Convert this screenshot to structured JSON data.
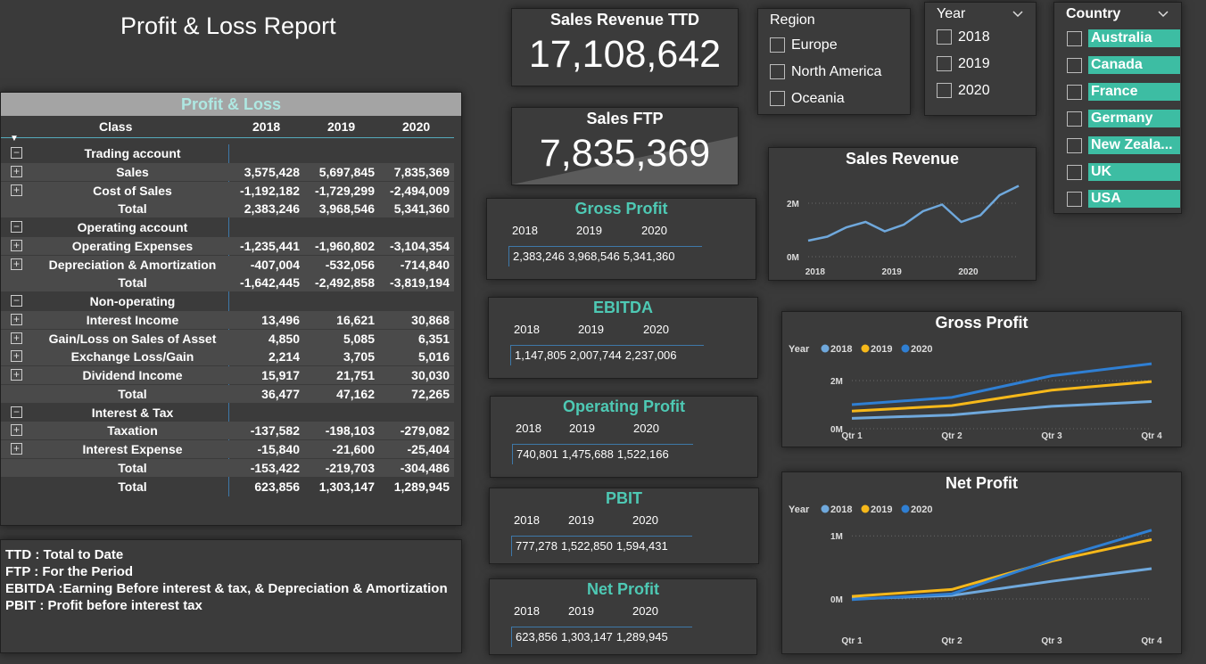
{
  "page_title": "Profit & Loss Report",
  "pl": {
    "title": "Profit & Loss",
    "headers": [
      "Class",
      "2018",
      "2019",
      "2020"
    ],
    "rows": [
      {
        "label": "Trading account",
        "exp": "−",
        "v": [
          "",
          "",
          ""
        ]
      },
      {
        "label": "Sales",
        "exp": "+",
        "v": [
          "3,575,428",
          "5,697,845",
          "7,835,369"
        ]
      },
      {
        "label": "Cost of Sales",
        "exp": "+",
        "v": [
          "-1,192,182",
          "-1,729,299",
          "-2,494,009"
        ]
      },
      {
        "label": "Total",
        "exp": "",
        "v": [
          "2,383,246",
          "3,968,546",
          "5,341,360"
        ]
      },
      {
        "label": "Operating account",
        "exp": "−",
        "v": [
          "",
          "",
          ""
        ]
      },
      {
        "label": "Operating Expenses",
        "exp": "+",
        "v": [
          "-1,235,441",
          "-1,960,802",
          "-3,104,354"
        ]
      },
      {
        "label": "Depreciation & Amortization",
        "exp": "+",
        "v": [
          "-407,004",
          "-532,056",
          "-714,840"
        ]
      },
      {
        "label": "Total",
        "exp": "",
        "v": [
          "-1,642,445",
          "-2,492,858",
          "-3,819,194"
        ]
      },
      {
        "label": "Non-operating",
        "exp": "−",
        "v": [
          "",
          "",
          ""
        ]
      },
      {
        "label": "Interest Income",
        "exp": "+",
        "v": [
          "13,496",
          "16,621",
          "30,868"
        ]
      },
      {
        "label": "Gain/Loss on Sales of Asset",
        "exp": "+",
        "v": [
          "4,850",
          "5,085",
          "6,351"
        ]
      },
      {
        "label": "Exchange Loss/Gain",
        "exp": "+",
        "v": [
          "2,214",
          "3,705",
          "5,016"
        ]
      },
      {
        "label": "Dividend Income",
        "exp": "+",
        "v": [
          "15,917",
          "21,751",
          "30,030"
        ]
      },
      {
        "label": "Total",
        "exp": "",
        "v": [
          "36,477",
          "47,162",
          "72,265"
        ]
      },
      {
        "label": "Interest & Tax",
        "exp": "−",
        "v": [
          "",
          "",
          ""
        ]
      },
      {
        "label": "Taxation",
        "exp": "+",
        "v": [
          "-137,582",
          "-198,103",
          "-279,082"
        ]
      },
      {
        "label": "Interest Expense",
        "exp": "+",
        "v": [
          "-15,840",
          "-21,600",
          "-25,404"
        ]
      },
      {
        "label": "Total",
        "exp": "",
        "v": [
          "-153,422",
          "-219,703",
          "-304,486"
        ]
      },
      {
        "label": "Total",
        "exp": "",
        "v": [
          "623,856",
          "1,303,147",
          "1,289,945"
        ]
      }
    ]
  },
  "notes": [
    "TTD : Total to Date",
    "FTP : For the Period",
    "EBITDA :Earning Before interest & tax, & Depreciation & Amortization",
    "PBIT : Profit before interest tax"
  ],
  "kpi_ttd": {
    "title": "Sales Revenue TTD",
    "value": "17,108,642"
  },
  "kpi_ftp": {
    "title": "Sales FTP",
    "value": "7,835,369"
  },
  "years": [
    "2018",
    "2019",
    "2020"
  ],
  "mini": {
    "gross": {
      "title": "Gross Profit",
      "values": [
        "2,383,246",
        "3,968,546",
        "5,341,360"
      ]
    },
    "ebitda": {
      "title": "EBITDA",
      "values": [
        "1,147,805",
        "2,007,744",
        "2,237,006"
      ]
    },
    "op": {
      "title": "Operating Profit",
      "values": [
        "740,801",
        "1,475,688",
        "1,522,166"
      ]
    },
    "pbit": {
      "title": "PBIT",
      "values": [
        "777,278",
        "1,522,850",
        "1,594,431"
      ]
    },
    "net": {
      "title": "Net Profit",
      "values": [
        "623,856",
        "1,303,147",
        "1,289,945"
      ]
    }
  },
  "region": {
    "title": "Region",
    "items": [
      "Europe",
      "North America",
      "Oceania"
    ]
  },
  "year_slicer": {
    "title": "Year",
    "items": [
      "2018",
      "2019",
      "2020"
    ],
    "icon": "chevron-down-icon"
  },
  "country": {
    "title": "Country",
    "items": [
      "Australia",
      "Canada",
      "France",
      "Germany",
      "New Zeala...",
      "UK",
      "USA"
    ],
    "icon": "chevron-down-icon",
    "selected_color": "#3dbda3"
  },
  "series_colors": {
    "2018": "#6fa8dc",
    "2019": "#f6b81a",
    "2020": "#2f7fd3"
  },
  "chart_data": [
    {
      "type": "line",
      "title": "Sales Revenue",
      "x_ticks": [
        "2018",
        "2019",
        "2020"
      ],
      "y_ticks": [
        "0M",
        "2M"
      ],
      "ylim": [
        0,
        2800000
      ],
      "series": [
        {
          "values": [
            600000,
            750000,
            1100000,
            1300000,
            950000,
            1200000,
            1700000,
            1950000,
            1300000,
            1550000,
            2300000,
            2650000
          ]
        }
      ]
    },
    {
      "type": "line",
      "title": "Gross Profit",
      "legend_title": "Year",
      "categories": [
        "Qtr 1",
        "Qtr 2",
        "Qtr 3",
        "Qtr 4"
      ],
      "y_ticks": [
        "0M",
        "2M"
      ],
      "ylim": [
        0,
        3000000
      ],
      "series": [
        {
          "name": "2018",
          "values": [
            430000,
            570000,
            930000,
            1130000
          ]
        },
        {
          "name": "2019",
          "values": [
            730000,
            960000,
            1600000,
            1960000
          ]
        },
        {
          "name": "2020",
          "values": [
            1000000,
            1300000,
            2200000,
            2700000
          ]
        }
      ]
    },
    {
      "type": "line",
      "title": "Net Profit",
      "legend_title": "Year",
      "categories": [
        "Qtr 1",
        "Qtr 2",
        "Qtr 3",
        "Qtr 4"
      ],
      "y_ticks": [
        "0M",
        "1M"
      ],
      "ylim": [
        0,
        1300000
      ],
      "series": [
        {
          "name": "2018",
          "values": [
            0,
            55000,
            280000,
            480000
          ]
        },
        {
          "name": "2019",
          "values": [
            40000,
            150000,
            600000,
            940000
          ]
        },
        {
          "name": "2020",
          "values": [
            -10000,
            80000,
            620000,
            1090000
          ]
        }
      ]
    }
  ]
}
